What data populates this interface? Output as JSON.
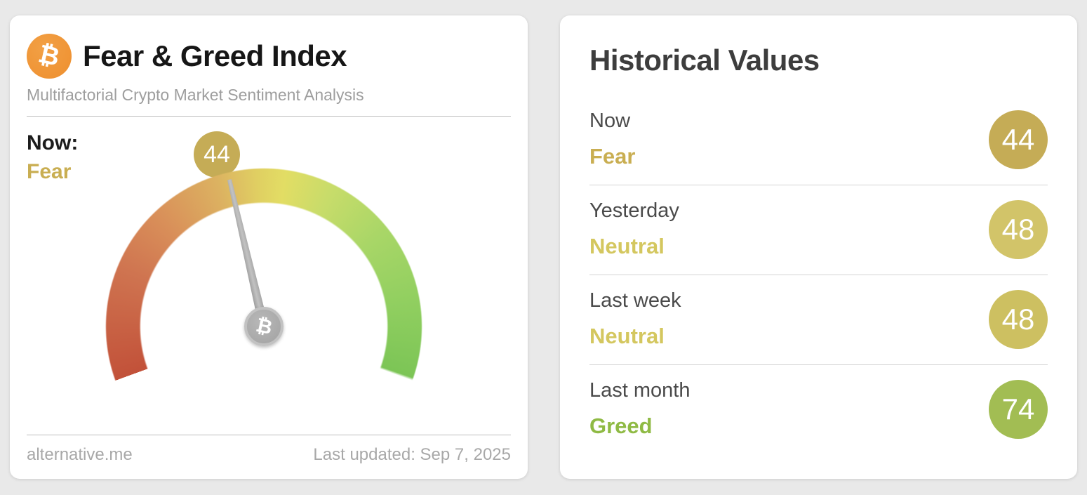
{
  "colors": {
    "fear_gold": "#c9ae52",
    "neutral_yellow": "#d4c75f",
    "greed_green": "#8fba44",
    "badge_now": "#c5ac56",
    "badge_yesterday": "#d2c469",
    "badge_lastweek": "#cdc061",
    "badge_lastmonth": "#a2bd53",
    "bitcoin_orange": "#ee8f2e"
  },
  "gauge_card": {
    "btc_symbol": "₿",
    "title": "Fear & Greed Index",
    "subtitle": "Multifactorial Crypto Market Sentiment Analysis",
    "now_label": "Now:",
    "now_classification": "Fear",
    "now_value": "44",
    "footer_source": "alternative.me",
    "footer_updated": "Last updated: Sep 7, 2025"
  },
  "historical_card": {
    "title": "Historical Values",
    "rows": [
      {
        "label": "Now",
        "classification": "Fear",
        "value": "44",
        "badge_color": "#c5ac56",
        "class_color": "#c9ae52"
      },
      {
        "label": "Yesterday",
        "classification": "Neutral",
        "value": "48",
        "badge_color": "#d2c469",
        "class_color": "#d4c75f"
      },
      {
        "label": "Last week",
        "classification": "Neutral",
        "value": "48",
        "badge_color": "#cdc061",
        "class_color": "#d4c75f"
      },
      {
        "label": "Last month",
        "classification": "Greed",
        "value": "74",
        "badge_color": "#a2bd53",
        "class_color": "#8fba44"
      }
    ]
  },
  "chart_data": {
    "type": "gauge",
    "title": "Fear & Greed Index",
    "subtitle": "Multifactorial Crypto Market Sentiment Analysis",
    "value": 44,
    "classification": "Fear",
    "min": 0,
    "max": 100,
    "start_angle_deg": -110,
    "end_angle_deg": 110,
    "scale_colors_low_to_high": [
      "#c25139",
      "#d98f59",
      "#e2dd64",
      "#a8d667",
      "#7cc556"
    ],
    "last_updated": "Sep 7, 2025",
    "source": "alternative.me",
    "historical": [
      {
        "period": "Now",
        "value": 44,
        "classification": "Fear"
      },
      {
        "period": "Yesterday",
        "value": 48,
        "classification": "Neutral"
      },
      {
        "period": "Last week",
        "value": 48,
        "classification": "Neutral"
      },
      {
        "period": "Last month",
        "value": 74,
        "classification": "Greed"
      }
    ]
  }
}
